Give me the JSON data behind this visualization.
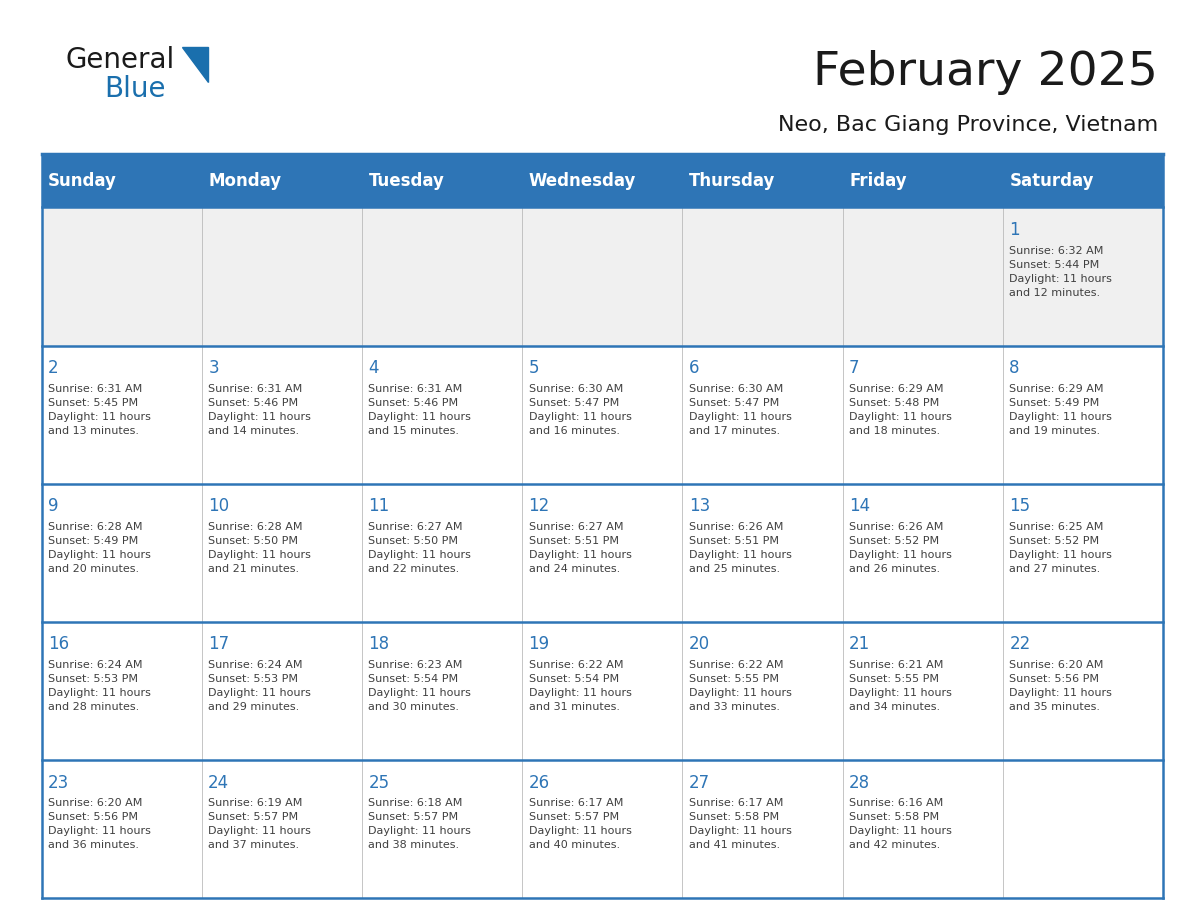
{
  "title": "February 2025",
  "subtitle": "Neo, Bac Giang Province, Vietnam",
  "header_bg": "#2E75B6",
  "header_text_color": "#FFFFFF",
  "cell_bg_white": "#FFFFFF",
  "cell_bg_light": "#F0F0F0",
  "grid_line_color": "#2E75B6",
  "day_number_color": "#2E75B6",
  "cell_text_color": "#404040",
  "days_of_week": [
    "Sunday",
    "Monday",
    "Tuesday",
    "Wednesday",
    "Thursday",
    "Friday",
    "Saturday"
  ],
  "weeks": [
    [
      {
        "day": null,
        "info": null
      },
      {
        "day": null,
        "info": null
      },
      {
        "day": null,
        "info": null
      },
      {
        "day": null,
        "info": null
      },
      {
        "day": null,
        "info": null
      },
      {
        "day": null,
        "info": null
      },
      {
        "day": 1,
        "info": "Sunrise: 6:32 AM\nSunset: 5:44 PM\nDaylight: 11 hours\nand 12 minutes."
      }
    ],
    [
      {
        "day": 2,
        "info": "Sunrise: 6:31 AM\nSunset: 5:45 PM\nDaylight: 11 hours\nand 13 minutes."
      },
      {
        "day": 3,
        "info": "Sunrise: 6:31 AM\nSunset: 5:46 PM\nDaylight: 11 hours\nand 14 minutes."
      },
      {
        "day": 4,
        "info": "Sunrise: 6:31 AM\nSunset: 5:46 PM\nDaylight: 11 hours\nand 15 minutes."
      },
      {
        "day": 5,
        "info": "Sunrise: 6:30 AM\nSunset: 5:47 PM\nDaylight: 11 hours\nand 16 minutes."
      },
      {
        "day": 6,
        "info": "Sunrise: 6:30 AM\nSunset: 5:47 PM\nDaylight: 11 hours\nand 17 minutes."
      },
      {
        "day": 7,
        "info": "Sunrise: 6:29 AM\nSunset: 5:48 PM\nDaylight: 11 hours\nand 18 minutes."
      },
      {
        "day": 8,
        "info": "Sunrise: 6:29 AM\nSunset: 5:49 PM\nDaylight: 11 hours\nand 19 minutes."
      }
    ],
    [
      {
        "day": 9,
        "info": "Sunrise: 6:28 AM\nSunset: 5:49 PM\nDaylight: 11 hours\nand 20 minutes."
      },
      {
        "day": 10,
        "info": "Sunrise: 6:28 AM\nSunset: 5:50 PM\nDaylight: 11 hours\nand 21 minutes."
      },
      {
        "day": 11,
        "info": "Sunrise: 6:27 AM\nSunset: 5:50 PM\nDaylight: 11 hours\nand 22 minutes."
      },
      {
        "day": 12,
        "info": "Sunrise: 6:27 AM\nSunset: 5:51 PM\nDaylight: 11 hours\nand 24 minutes."
      },
      {
        "day": 13,
        "info": "Sunrise: 6:26 AM\nSunset: 5:51 PM\nDaylight: 11 hours\nand 25 minutes."
      },
      {
        "day": 14,
        "info": "Sunrise: 6:26 AM\nSunset: 5:52 PM\nDaylight: 11 hours\nand 26 minutes."
      },
      {
        "day": 15,
        "info": "Sunrise: 6:25 AM\nSunset: 5:52 PM\nDaylight: 11 hours\nand 27 minutes."
      }
    ],
    [
      {
        "day": 16,
        "info": "Sunrise: 6:24 AM\nSunset: 5:53 PM\nDaylight: 11 hours\nand 28 minutes."
      },
      {
        "day": 17,
        "info": "Sunrise: 6:24 AM\nSunset: 5:53 PM\nDaylight: 11 hours\nand 29 minutes."
      },
      {
        "day": 18,
        "info": "Sunrise: 6:23 AM\nSunset: 5:54 PM\nDaylight: 11 hours\nand 30 minutes."
      },
      {
        "day": 19,
        "info": "Sunrise: 6:22 AM\nSunset: 5:54 PM\nDaylight: 11 hours\nand 31 minutes."
      },
      {
        "day": 20,
        "info": "Sunrise: 6:22 AM\nSunset: 5:55 PM\nDaylight: 11 hours\nand 33 minutes."
      },
      {
        "day": 21,
        "info": "Sunrise: 6:21 AM\nSunset: 5:55 PM\nDaylight: 11 hours\nand 34 minutes."
      },
      {
        "day": 22,
        "info": "Sunrise: 6:20 AM\nSunset: 5:56 PM\nDaylight: 11 hours\nand 35 minutes."
      }
    ],
    [
      {
        "day": 23,
        "info": "Sunrise: 6:20 AM\nSunset: 5:56 PM\nDaylight: 11 hours\nand 36 minutes."
      },
      {
        "day": 24,
        "info": "Sunrise: 6:19 AM\nSunset: 5:57 PM\nDaylight: 11 hours\nand 37 minutes."
      },
      {
        "day": 25,
        "info": "Sunrise: 6:18 AM\nSunset: 5:57 PM\nDaylight: 11 hours\nand 38 minutes."
      },
      {
        "day": 26,
        "info": "Sunrise: 6:17 AM\nSunset: 5:57 PM\nDaylight: 11 hours\nand 40 minutes."
      },
      {
        "day": 27,
        "info": "Sunrise: 6:17 AM\nSunset: 5:58 PM\nDaylight: 11 hours\nand 41 minutes."
      },
      {
        "day": 28,
        "info": "Sunrise: 6:16 AM\nSunset: 5:58 PM\nDaylight: 11 hours\nand 42 minutes."
      },
      {
        "day": null,
        "info": null
      }
    ]
  ],
  "logo_color_general": "#1a1a1a",
  "logo_color_blue": "#1a6fad",
  "logo_triangle_color": "#1a6fad",
  "fig_width": 11.88,
  "fig_height": 9.18,
  "dpi": 100
}
